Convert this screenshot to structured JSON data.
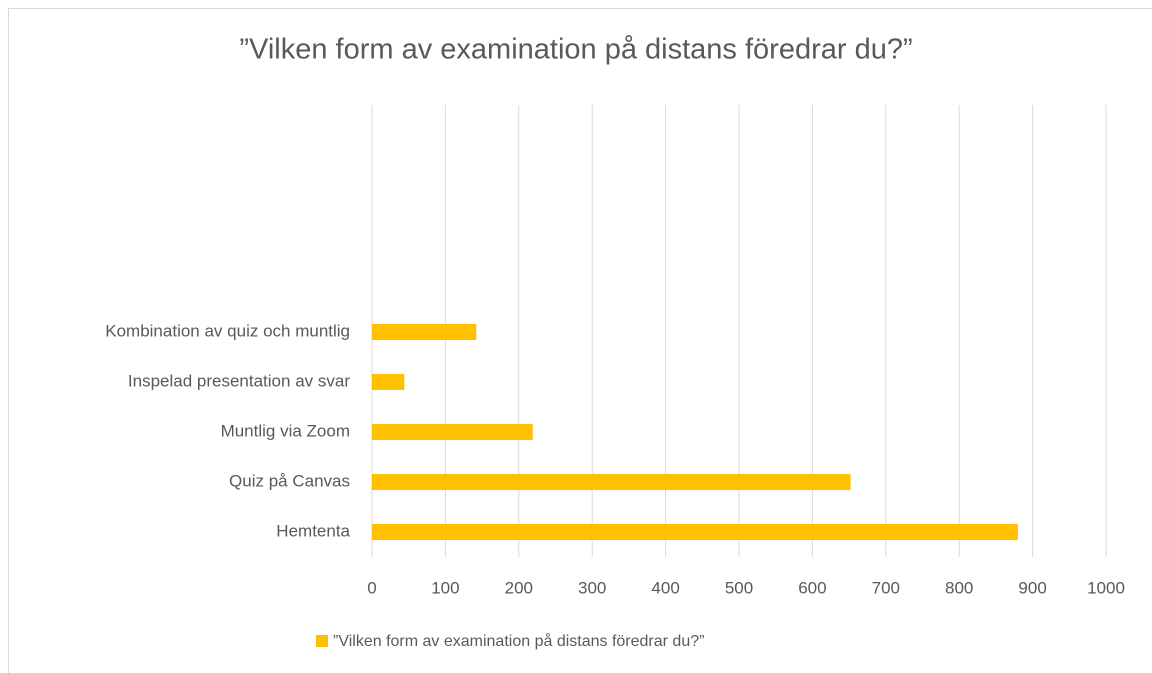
{
  "chart_data": {
    "type": "bar",
    "orientation": "horizontal",
    "title": "”Vilken form av examination på distans föredrar du?”",
    "categories": [
      "Kombination av quiz och muntlig",
      "Inspelad presentation av svar",
      "Muntlig via Zoom",
      "Quiz på Canvas",
      "Hemtenta"
    ],
    "series": [
      {
        "name": "”Vilken form av examination på distans föredrar du?”",
        "color": "#ffc000",
        "values": [
          142,
          44,
          219,
          652,
          880
        ]
      }
    ],
    "xlim": [
      0,
      1000
    ],
    "xticks": [
      0,
      100,
      200,
      300,
      400,
      500,
      600,
      700,
      800,
      900,
      1000
    ],
    "grid": true,
    "legend": "bottom"
  }
}
